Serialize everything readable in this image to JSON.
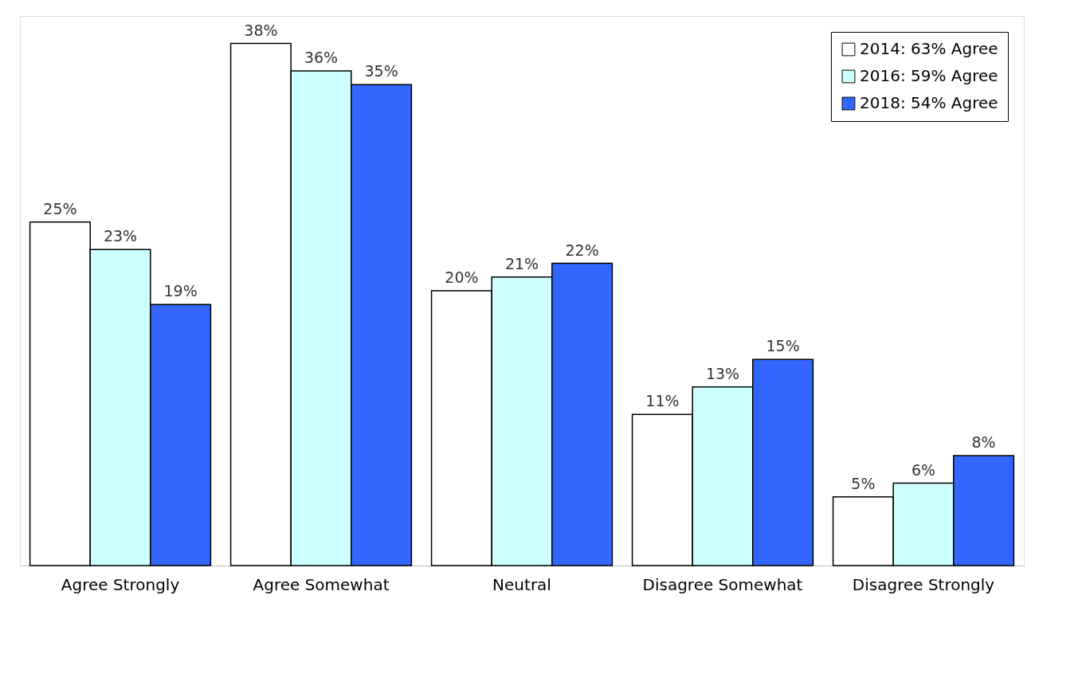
{
  "chart_data": {
    "type": "bar",
    "categories": [
      "Agree Strongly",
      "Agree Somewhat",
      "Neutral",
      "Disagree Somewhat",
      "Disagree Strongly"
    ],
    "series": [
      {
        "name": "2014: 63% Agree",
        "color": "#ffffff",
        "values": [
          25,
          38,
          20,
          11,
          5
        ],
        "value_labels": [
          "25%",
          "38%",
          "20%",
          "11%",
          "5%"
        ]
      },
      {
        "name": "2016: 59% Agree",
        "color": "#ccffff",
        "values": [
          23,
          36,
          21,
          13,
          6
        ],
        "value_labels": [
          "23%",
          "36%",
          "21%",
          "13%",
          "6%"
        ]
      },
      {
        "name": "2018: 54% Agree",
        "color": "#3366ff",
        "values": [
          19,
          35,
          22,
          15,
          8
        ],
        "value_labels": [
          "19%",
          "35%",
          "22%",
          "15%",
          "8%"
        ]
      }
    ],
    "legend": "top right",
    "grid": false
  }
}
